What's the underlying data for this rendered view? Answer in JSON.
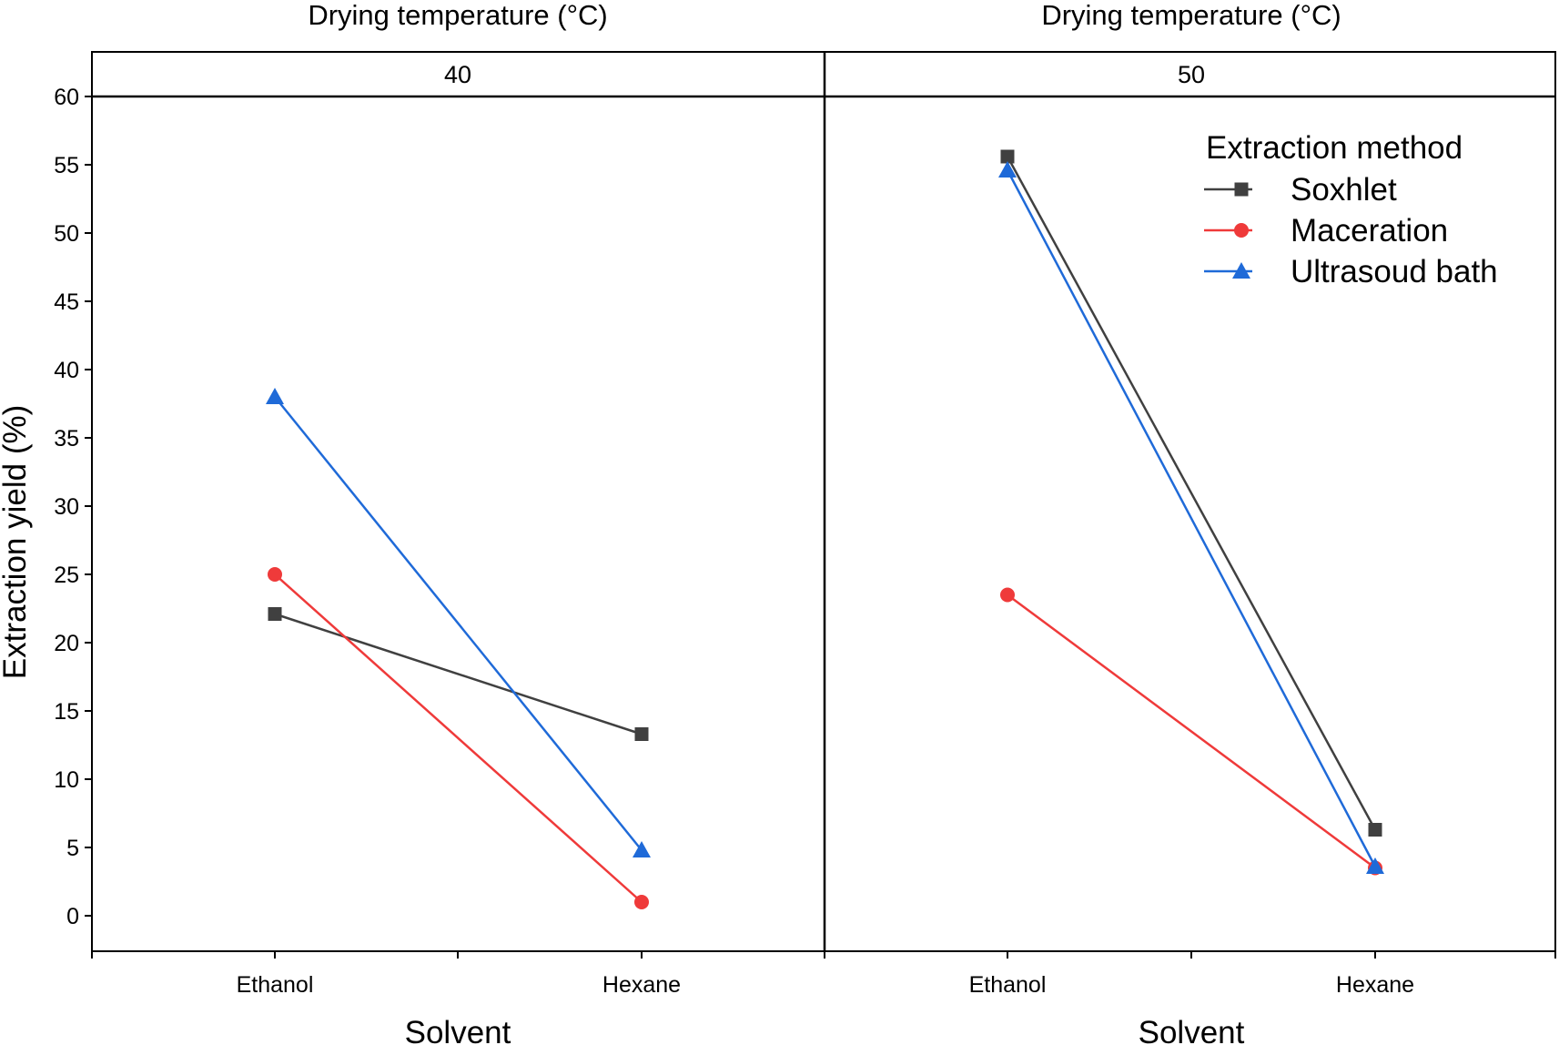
{
  "chart_data": {
    "type": "line",
    "facet_title": "Drying temperature (°C)",
    "ylabel": "Extraction yield (%)",
    "xlabel": "Solvent",
    "ylim": [
      -2.5,
      62.5
    ],
    "yticks": [
      0,
      5,
      10,
      15,
      20,
      25,
      30,
      35,
      40,
      45,
      50,
      55,
      60
    ],
    "categories": [
      "Ethanol",
      "Hexane"
    ],
    "legend": {
      "title": "Extraction method",
      "placement": "top-right"
    },
    "panels": [
      {
        "label": "40",
        "series": [
          {
            "name": "Soxhlet",
            "values": [
              22.1,
              13.3
            ]
          },
          {
            "name": "Maceration",
            "values": [
              25.0,
              1.0
            ]
          },
          {
            "name": "Ultrasoud bath",
            "values": [
              38.0,
              4.8
            ]
          }
        ]
      },
      {
        "label": "50",
        "series": [
          {
            "name": "Soxhlet",
            "values": [
              55.6,
              6.3
            ]
          },
          {
            "name": "Maceration",
            "values": [
              23.5,
              3.5
            ]
          },
          {
            "name": "Ultrasoud bath",
            "values": [
              54.6,
              3.6
            ]
          }
        ]
      }
    ],
    "series_styles": [
      {
        "name": "Soxhlet",
        "color": "#404040",
        "marker": "square"
      },
      {
        "name": "Maceration",
        "color": "#ef3a3a",
        "marker": "circle"
      },
      {
        "name": "Ultrasoud bath",
        "color": "#1f6ad8",
        "marker": "triangle"
      }
    ]
  }
}
